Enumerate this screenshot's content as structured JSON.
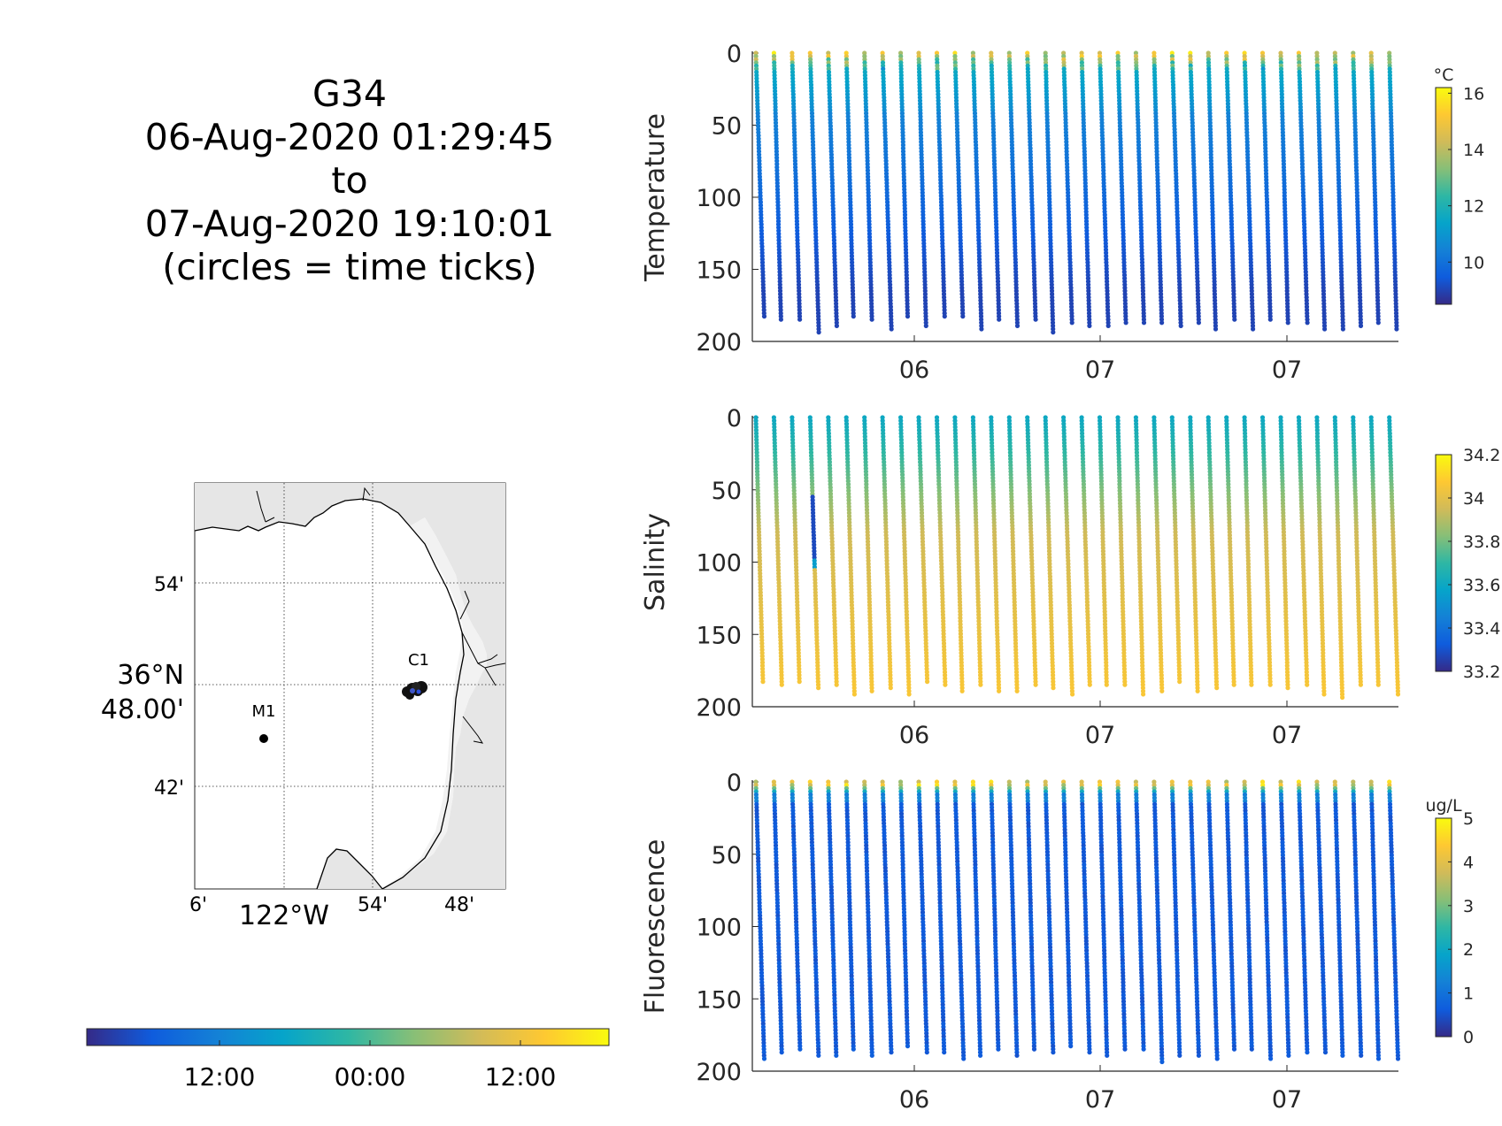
{
  "title_block": {
    "glider": "G34",
    "start": "06-Aug-2020 01:29:45",
    "to": "to",
    "end": "07-Aug-2020 19:10:01",
    "note": "(circles = time ticks)"
  },
  "map": {
    "lat_ticks": [
      "54'",
      "42'"
    ],
    "lat_center_line1": "36°N",
    "lat_center_line2": "48.00'",
    "lon_ticks": [
      "6'",
      "54'",
      "48'"
    ],
    "lon_center": "122°W",
    "stations": [
      {
        "label": "M1"
      },
      {
        "label": "C1"
      }
    ],
    "land_color": "#e6e6e6",
    "sea_color": "#ffffff",
    "track_color": "#000000",
    "time_colorbar_ticks": [
      "12:00",
      "00:00",
      "12:00"
    ]
  },
  "colors": {
    "parula": [
      "#352a87",
      "#0f5cdd",
      "#1481d6",
      "#06a4ca",
      "#2eb7a4",
      "#87bf77",
      "#d1bb59",
      "#fec832",
      "#f9fb0e"
    ]
  },
  "chart_data": [
    {
      "type": "scatter",
      "ylabel": "Temperature",
      "ylim": [
        200,
        0
      ],
      "yticks": [
        0,
        50,
        100,
        150,
        200
      ],
      "xtick_labels": [
        "06",
        "07",
        "07"
      ],
      "profiles": 36,
      "max_depth_m": 190,
      "colorbar": {
        "unit": "°C",
        "min": 8.5,
        "max": 16.2,
        "ticks": [
          10,
          12,
          14,
          16
        ]
      },
      "surface_value_range": [
        13.5,
        16.0
      ],
      "mid_value": 10.5,
      "deep_value": 9.0
    },
    {
      "type": "scatter",
      "ylabel": "Salinity",
      "ylim": [
        200,
        0
      ],
      "yticks": [
        0,
        50,
        100,
        150,
        200
      ],
      "xtick_labels": [
        "06",
        "07",
        "07"
      ],
      "profiles": 36,
      "max_depth_m": 190,
      "colorbar": {
        "unit": "",
        "min": 33.2,
        "max": 34.2,
        "ticks": [
          33.2,
          33.4,
          33.6,
          33.8,
          34,
          34.2
        ],
        "tick_labels": [
          "33.2",
          "33.4",
          "33.6",
          "33.8",
          "34",
          "34.2"
        ]
      },
      "surface_value": 33.6,
      "mid_value": 33.95,
      "deep_value": 34.05
    },
    {
      "type": "scatter",
      "ylabel": "Fluorescence",
      "ylim": [
        200,
        0
      ],
      "yticks": [
        0,
        50,
        100,
        150,
        200
      ],
      "xtick_labels": [
        "06",
        "07",
        "07"
      ],
      "profiles": 36,
      "max_depth_m": 190,
      "colorbar": {
        "unit": "ug/L",
        "min": 0,
        "max": 5,
        "ticks": [
          0,
          1,
          2,
          3,
          4,
          5
        ]
      },
      "surface_value": 4.8,
      "deep_value": 0.5
    }
  ]
}
